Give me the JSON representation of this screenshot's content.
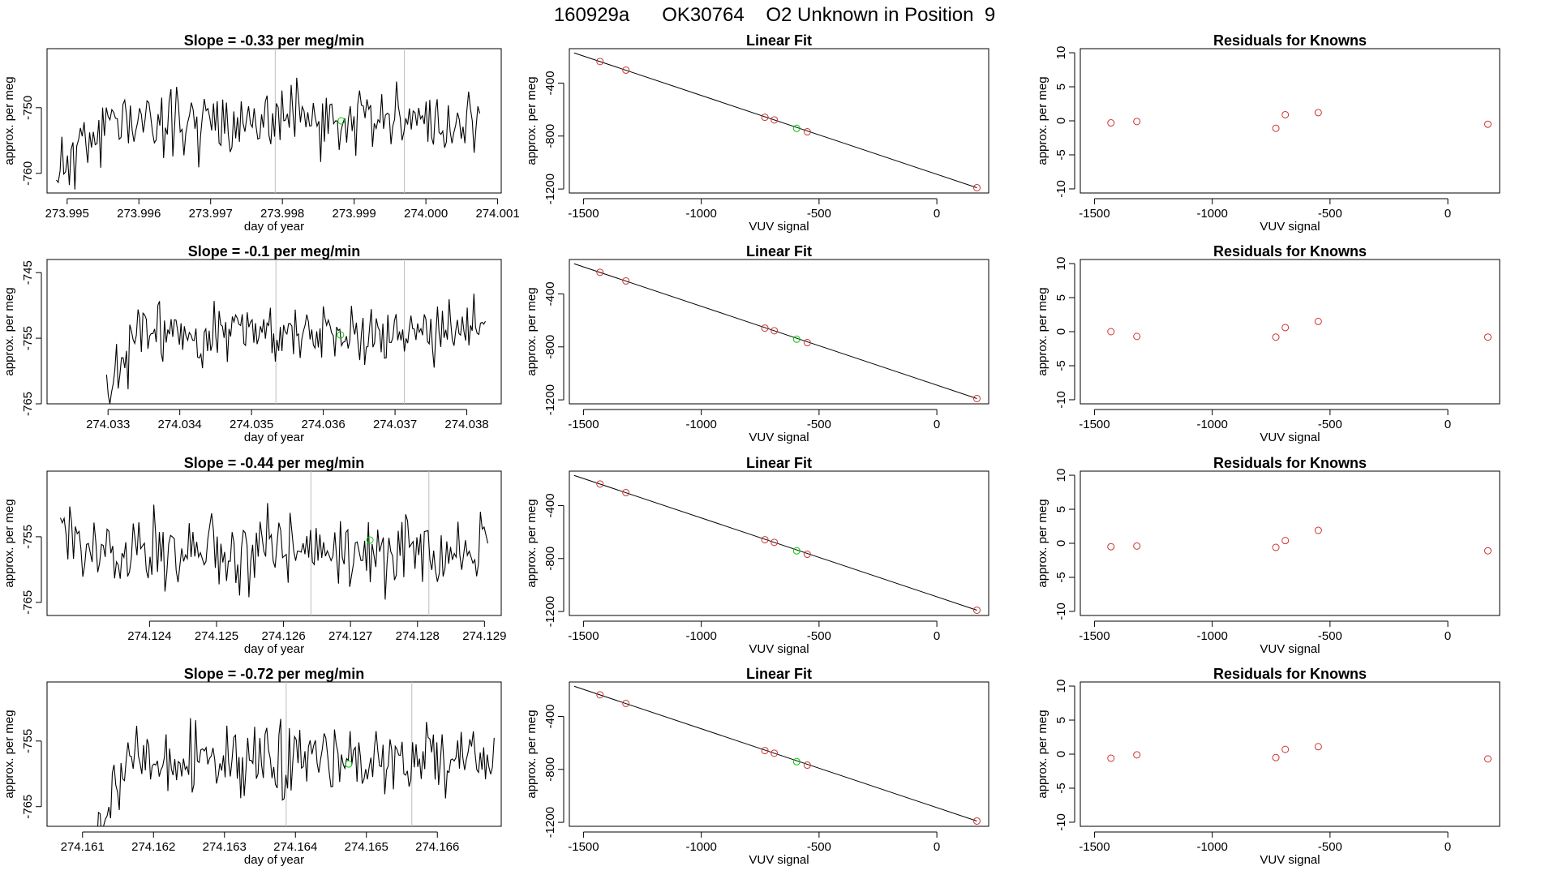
{
  "title": "160929a      OK30764    O2 Unknown in Position  9",
  "colors": {
    "line": "#000000",
    "known": "#cd3333",
    "unknown": "#00cc00",
    "frame": "#000000",
    "vline": "#bebebe"
  },
  "chart_data": [
    {
      "row": 0,
      "time": {
        "type": "line",
        "title": "Slope =  -0.33  per meg/min",
        "xlabel": "day of year",
        "ylabel": "approx. per meg",
        "xlim": [
          273.99472,
          274.00105
        ],
        "ylim": [
          -763,
          -741
        ],
        "xticks": [
          273.995,
          273.996,
          273.997,
          273.998,
          273.999,
          274.0,
          274.001
        ],
        "xtick_labels": [
          "273.995",
          "273.996",
          "273.997",
          "273.998",
          "273.999",
          "274.000",
          "274.001"
        ],
        "yticks": [
          -760,
          -750
        ],
        "ytick_labels": [
          "-760",
          "-750"
        ],
        "x_start": 273.99485,
        "x_end": 274.00075,
        "y_mean": -752,
        "y_amp": 2.6,
        "rise_end": 0.13,
        "y_low_start": -760,
        "seed": 11,
        "vlines": [
          273.9979,
          273.9997
        ],
        "unknown_point": {
          "x": 273.99882,
          "y": -752
        }
      },
      "fit": {
        "type": "scatter",
        "title": "Linear Fit",
        "xlabel": "VUV signal",
        "ylabel": "approx. per meg",
        "xlim": [
          -1560,
          220
        ],
        "ylim": [
          -1230,
          -140
        ],
        "xticks": [
          -1500,
          -1000,
          -500,
          0
        ],
        "xtick_labels": [
          "-1500",
          "-1000",
          "-500",
          "0"
        ],
        "yticks": [
          -1200,
          -800,
          -400
        ],
        "ytick_labels": [
          "-1200",
          "-800",
          "-400"
        ],
        "line": {
          "x": [
            -1540,
            170
          ],
          "y": [
            -172,
            -1190
          ]
        },
        "knowns": [
          {
            "x": -1430,
            "y": -237
          },
          {
            "x": -1320,
            "y": -302
          },
          {
            "x": -730,
            "y": -658
          },
          {
            "x": -690,
            "y": -678
          },
          {
            "x": -550,
            "y": -768
          },
          {
            "x": 170,
            "y": -1190
          }
        ],
        "unknown": {
          "x": -595,
          "y": -742
        }
      },
      "resid": {
        "type": "scatter",
        "title": "Residuals for Knowns",
        "xlabel": "VUV signal",
        "ylabel": "approx. per meg",
        "xlim": [
          -1560,
          220
        ],
        "ylim": [
          -10.6,
          10.6
        ],
        "xticks": [
          -1500,
          -1000,
          -500,
          0
        ],
        "xtick_labels": [
          "-1500",
          "-1000",
          "-500",
          "0"
        ],
        "yticks": [
          -10,
          -5,
          0,
          5,
          10
        ],
        "ytick_labels": [
          "-10",
          "-5",
          "0",
          "5",
          "10"
        ],
        "points": [
          {
            "x": -1430,
            "y": -0.3
          },
          {
            "x": -1320,
            "y": -0.1
          },
          {
            "x": -730,
            "y": -1.1
          },
          {
            "x": -690,
            "y": 0.9
          },
          {
            "x": -550,
            "y": 1.2
          },
          {
            "x": 170,
            "y": -0.5
          }
        ]
      }
    },
    {
      "row": 1,
      "time": {
        "type": "line",
        "title": "Slope =  -0.1  per meg/min",
        "xlabel": "day of year",
        "ylabel": "approx. per meg",
        "xlim": [
          274.03215,
          274.03848
        ],
        "ylim": [
          -765,
          -743
        ],
        "xticks": [
          274.033,
          274.034,
          274.035,
          274.036,
          274.037,
          274.038
        ],
        "xtick_labels": [
          "274.033",
          "274.034",
          "274.035",
          "274.036",
          "274.037",
          "274.038"
        ],
        "yticks": [
          -765,
          -755,
          -745
        ],
        "ytick_labels": [
          "-765",
          "-755",
          "-745"
        ],
        "x_start": 274.03298,
        "x_end": 274.03826,
        "y_mean": -754,
        "y_amp": 2.3,
        "rise_end": 0.08,
        "y_low_start": -765,
        "seed": 23,
        "vlines": [
          274.03534,
          274.03713
        ],
        "unknown_point": {
          "x": 274.03624,
          "y": -754.5
        }
      },
      "fit": {
        "type": "scatter",
        "title": "Linear Fit",
        "xlabel": "VUV signal",
        "ylabel": "approx. per meg",
        "xlim": [
          -1560,
          220
        ],
        "ylim": [
          -1230,
          -140
        ],
        "xticks": [
          -1500,
          -1000,
          -500,
          0
        ],
        "xtick_labels": [
          "-1500",
          "-1000",
          "-500",
          "0"
        ],
        "yticks": [
          -1200,
          -800,
          -400
        ],
        "ytick_labels": [
          "-1200",
          "-800",
          "-400"
        ],
        "line": {
          "x": [
            -1540,
            170
          ],
          "y": [
            -172,
            -1190
          ]
        },
        "knowns": [
          {
            "x": -1430,
            "y": -237
          },
          {
            "x": -1320,
            "y": -302
          },
          {
            "x": -730,
            "y": -658
          },
          {
            "x": -690,
            "y": -678
          },
          {
            "x": -550,
            "y": -768
          },
          {
            "x": 170,
            "y": -1190
          }
        ],
        "unknown": {
          "x": -595,
          "y": -742
        }
      },
      "resid": {
        "type": "scatter",
        "title": "Residuals for Knowns",
        "xlabel": "VUV signal",
        "ylabel": "approx. per meg",
        "xlim": [
          -1560,
          220
        ],
        "ylim": [
          -10.6,
          10.6
        ],
        "xticks": [
          -1500,
          -1000,
          -500,
          0
        ],
        "xtick_labels": [
          "-1500",
          "-1000",
          "-500",
          "0"
        ],
        "yticks": [
          -10,
          -5,
          0,
          5,
          10
        ],
        "ytick_labels": [
          "-10",
          "-5",
          "0",
          "5",
          "10"
        ],
        "points": [
          {
            "x": -1430,
            "y": 0.0
          },
          {
            "x": -1320,
            "y": -0.7
          },
          {
            "x": -730,
            "y": -0.8
          },
          {
            "x": -690,
            "y": 0.6
          },
          {
            "x": -550,
            "y": 1.5
          },
          {
            "x": 170,
            "y": -0.8
          }
        ]
      }
    },
    {
      "row": 2,
      "time": {
        "type": "line",
        "title": "Slope =  -0.44  per meg/min",
        "xlabel": "day of year",
        "ylabel": "approx. per meg",
        "xlim": [
          274.12247,
          274.12925
        ],
        "ylim": [
          -767,
          -745
        ],
        "xticks": [
          274.124,
          274.125,
          274.126,
          274.127,
          274.128,
          274.129
        ],
        "xtick_labels": [
          "274.124",
          "274.125",
          "274.126",
          "274.127",
          "274.128",
          "274.129"
        ],
        "yticks": [
          -765,
          -755
        ],
        "ytick_labels": [
          "-765",
          "-755"
        ],
        "x_start": 274.12267,
        "x_end": 274.12905,
        "y_mean": -757,
        "y_amp": 3.0,
        "rise_end": 0.0,
        "y_low_start": -758,
        "seed": 37,
        "vlines": [
          274.12641,
          274.12817
        ],
        "unknown_point": {
          "x": 274.12729,
          "y": -755.5
        }
      },
      "fit": {
        "type": "scatter",
        "title": "Linear Fit",
        "xlabel": "VUV signal",
        "ylabel": "approx. per meg",
        "xlim": [
          -1560,
          220
        ],
        "ylim": [
          -1230,
          -140
        ],
        "xticks": [
          -1500,
          -1000,
          -500,
          0
        ],
        "xtick_labels": [
          "-1500",
          "-1000",
          "-500",
          "0"
        ],
        "yticks": [
          -1200,
          -800,
          -400
        ],
        "ytick_labels": [
          "-1200",
          "-800",
          "-400"
        ],
        "line": {
          "x": [
            -1540,
            170
          ],
          "y": [
            -172,
            -1190
          ]
        },
        "knowns": [
          {
            "x": -1430,
            "y": -237
          },
          {
            "x": -1320,
            "y": -302
          },
          {
            "x": -730,
            "y": -658
          },
          {
            "x": -690,
            "y": -678
          },
          {
            "x": -550,
            "y": -768
          },
          {
            "x": 170,
            "y": -1190
          }
        ],
        "unknown": {
          "x": -595,
          "y": -742
        }
      },
      "resid": {
        "type": "scatter",
        "title": "Residuals for Knowns",
        "xlabel": "VUV signal",
        "ylabel": "approx. per meg",
        "xlim": [
          -1560,
          220
        ],
        "ylim": [
          -10.6,
          10.6
        ],
        "xticks": [
          -1500,
          -1000,
          -500,
          0
        ],
        "xtick_labels": [
          "-1500",
          "-1000",
          "-500",
          "0"
        ],
        "yticks": [
          -10,
          -5,
          0,
          5,
          10
        ],
        "ytick_labels": [
          "-10",
          "-5",
          "0",
          "5",
          "10"
        ],
        "points": [
          {
            "x": -1430,
            "y": -0.5
          },
          {
            "x": -1320,
            "y": -0.4
          },
          {
            "x": -730,
            "y": -0.6
          },
          {
            "x": -690,
            "y": 0.4
          },
          {
            "x": -550,
            "y": 1.9
          },
          {
            "x": 170,
            "y": -1.1
          }
        ]
      }
    },
    {
      "row": 3,
      "time": {
        "type": "line",
        "title": "Slope =  -0.72  per meg/min",
        "xlabel": "day of year",
        "ylabel": "approx. per meg",
        "xlim": [
          274.1605,
          274.1669
        ],
        "ylim": [
          -768,
          -746
        ],
        "xticks": [
          274.161,
          274.162,
          274.163,
          274.164,
          274.165,
          274.166
        ],
        "xtick_labels": [
          "274.161",
          "274.162",
          "274.163",
          "274.164",
          "274.165",
          "274.166"
        ],
        "yticks": [
          -765,
          -755
        ],
        "ytick_labels": [
          "-765",
          "-755"
        ],
        "x_start": 274.1612,
        "x_end": 274.1668,
        "y_mean": -758,
        "y_amp": 2.6,
        "rise_end": 0.08,
        "y_low_start": -768,
        "seed": 53,
        "vlines": [
          274.16387,
          274.16564
        ],
        "unknown_point": {
          "x": 274.16475,
          "y": -758.5
        }
      },
      "fit": {
        "type": "scatter",
        "title": "Linear Fit",
        "xlabel": "VUV signal",
        "ylabel": "approx. per meg",
        "xlim": [
          -1560,
          220
        ],
        "ylim": [
          -1230,
          -140
        ],
        "xticks": [
          -1500,
          -1000,
          -500,
          0
        ],
        "xtick_labels": [
          "-1500",
          "-1000",
          "-500",
          "0"
        ],
        "yticks": [
          -1200,
          -800,
          -400
        ],
        "ytick_labels": [
          "-1200",
          "-800",
          "-400"
        ],
        "line": {
          "x": [
            -1540,
            170
          ],
          "y": [
            -172,
            -1190
          ]
        },
        "knowns": [
          {
            "x": -1430,
            "y": -237
          },
          {
            "x": -1320,
            "y": -302
          },
          {
            "x": -730,
            "y": -658
          },
          {
            "x": -690,
            "y": -678
          },
          {
            "x": -550,
            "y": -768
          },
          {
            "x": 170,
            "y": -1190
          }
        ],
        "unknown": {
          "x": -595,
          "y": -742
        }
      },
      "resid": {
        "type": "scatter",
        "title": "Residuals for Knowns",
        "xlabel": "VUV signal",
        "ylabel": "approx. per meg",
        "xlim": [
          -1560,
          220
        ],
        "ylim": [
          -10.6,
          10.6
        ],
        "xticks": [
          -1500,
          -1000,
          -500,
          0
        ],
        "xtick_labels": [
          "-1500",
          "-1000",
          "-500",
          "0"
        ],
        "yticks": [
          -10,
          -5,
          0,
          5,
          10
        ],
        "ytick_labels": [
          "-10",
          "-5",
          "0",
          "5",
          "10"
        ],
        "points": [
          {
            "x": -1430,
            "y": -0.6
          },
          {
            "x": -1320,
            "y": -0.1
          },
          {
            "x": -730,
            "y": -0.5
          },
          {
            "x": -690,
            "y": 0.7
          },
          {
            "x": -550,
            "y": 1.1
          },
          {
            "x": 170,
            "y": -0.7
          }
        ]
      }
    }
  ]
}
